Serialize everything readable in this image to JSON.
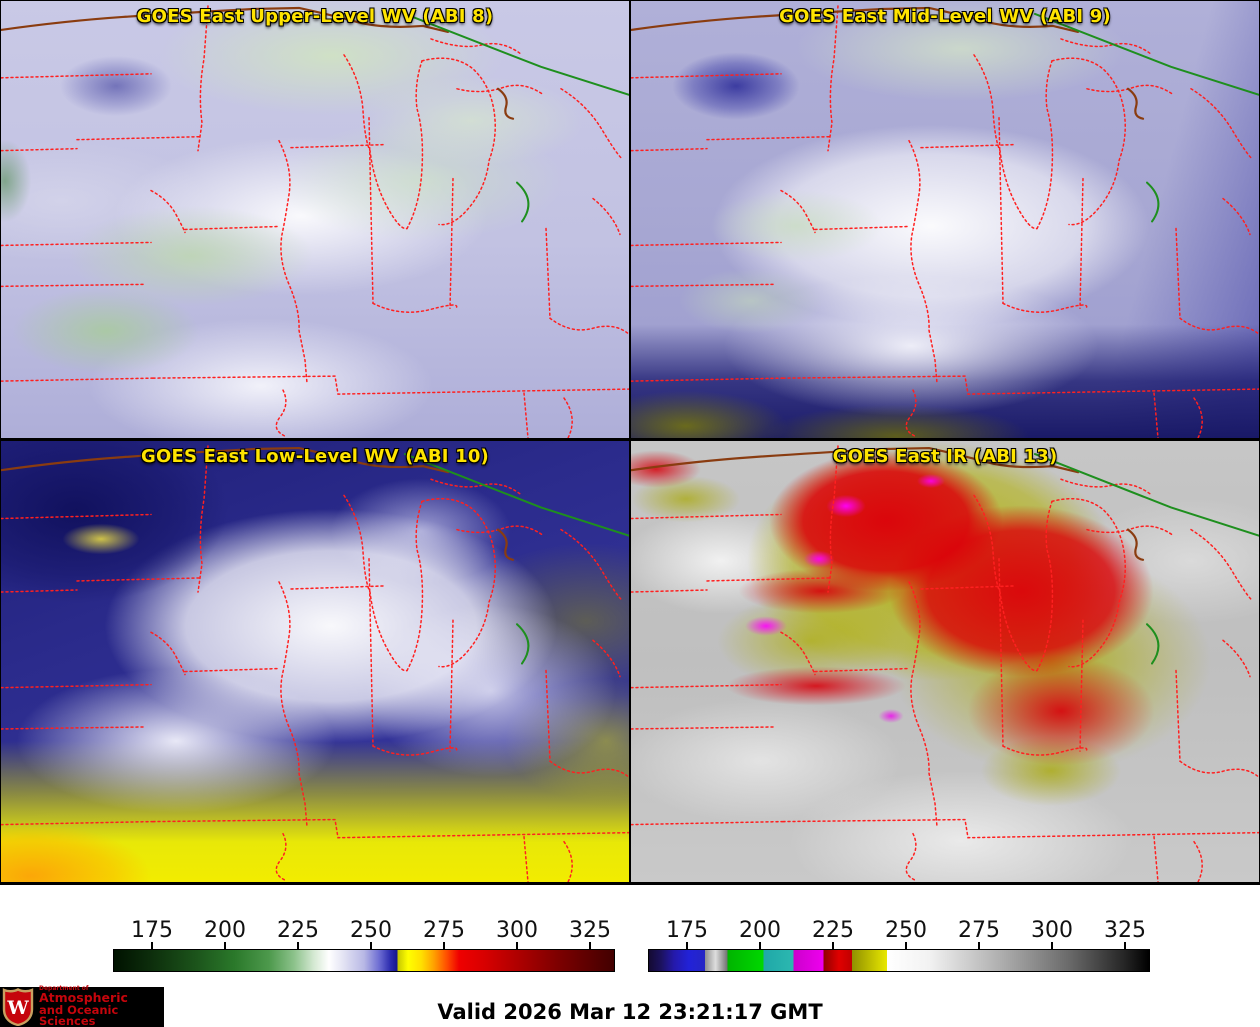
{
  "panels": [
    {
      "title": "GOES East Upper-Level WV (ABI 8)"
    },
    {
      "title": "GOES East Mid-Level WV (ABI 9)"
    },
    {
      "title": "GOES East Low-Level WV (ABI 10)"
    },
    {
      "title": "GOES East IR (ABI 13)"
    }
  ],
  "colorbars": [
    {
      "name": "wv-enhancement-scale",
      "ticks": [
        "175",
        "200",
        "225",
        "250",
        "275",
        "300",
        "325"
      ]
    },
    {
      "name": "ir-enhancement-scale",
      "ticks": [
        "175",
        "200",
        "225",
        "250",
        "275",
        "300",
        "325"
      ]
    }
  ],
  "footer": {
    "valid_text": "Valid 2026 Mar 12 23:21:17 GMT",
    "logo": {
      "w_letter": "W",
      "dept_line": "Department of",
      "line1": "Atmospheric",
      "line2": "and Oceanic Sciences"
    }
  },
  "colors": {
    "title_yellow": "#ffe400",
    "state_border_red": "#ff2020",
    "canada_border_brown": "#8a3c10",
    "lake_border_green": "#1e8f1e",
    "logo_red": "#c5050c",
    "logo_background": "#000000"
  }
}
